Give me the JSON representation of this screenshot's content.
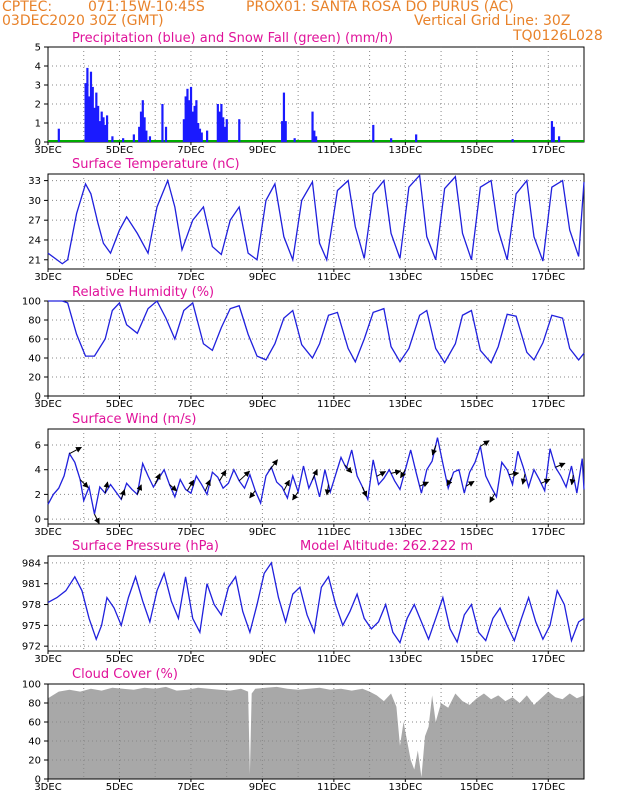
{
  "header": {
    "source": "CPTEC:",
    "coords": "071:15W-10:45S",
    "location": "PROX01: SANTA ROSA DO PURUS (AC)",
    "date": "03DEC2020 30Z (GMT)",
    "grid_note": "Vertical Grid Line: 30Z",
    "run_id": "TQ0126L028",
    "model_altitude": "Model Altitude: 262.222 m"
  },
  "colors": {
    "header_text": "#e8822a",
    "panel_title": "#e0129a",
    "precip": "#1a1aff",
    "snow": "#00aa00",
    "line": "#2020dd",
    "cloud": "#a8a8a8",
    "arrow": "#000000",
    "grid": "#888888"
  },
  "x_axis": {
    "start_day": 3,
    "end_day": 18,
    "labels": [
      "3DEC",
      "5DEC",
      "7DEC",
      "9DEC",
      "11DEC",
      "13DEC",
      "15DEC",
      "17DEC"
    ],
    "label_days": [
      3,
      5,
      7,
      9,
      11,
      13,
      15,
      17
    ],
    "grid_days": [
      4,
      5,
      6,
      7,
      8,
      9,
      10,
      11,
      12,
      13,
      14,
      15,
      16,
      17
    ]
  },
  "chart_data": [
    {
      "id": "precip",
      "type": "bar",
      "title": "Precipitation (blue) and Snow Fall (green) (mm/h)",
      "ylim": [
        0,
        5
      ],
      "yticks": [
        0,
        1,
        2,
        3,
        4,
        5
      ],
      "bars": [
        [
          3.3,
          0.7
        ],
        [
          4.05,
          3.1
        ],
        [
          4.1,
          3.9
        ],
        [
          4.15,
          2.4
        ],
        [
          4.2,
          3.7
        ],
        [
          4.25,
          2.9
        ],
        [
          4.3,
          1.8
        ],
        [
          4.35,
          2.6
        ],
        [
          4.4,
          1.9
        ],
        [
          4.45,
          1.1
        ],
        [
          4.5,
          1.6
        ],
        [
          4.55,
          1.3
        ],
        [
          4.6,
          0.9
        ],
        [
          4.65,
          1.4
        ],
        [
          4.8,
          0.3
        ],
        [
          5.1,
          0.2
        ],
        [
          5.4,
          0.4
        ],
        [
          5.55,
          0.8
        ],
        [
          5.6,
          1.6
        ],
        [
          5.65,
          2.2
        ],
        [
          5.7,
          1.3
        ],
        [
          5.75,
          0.6
        ],
        [
          5.85,
          0.3
        ],
        [
          6.2,
          2.0
        ],
        [
          6.3,
          0.8
        ],
        [
          6.8,
          1.2
        ],
        [
          6.85,
          2.4
        ],
        [
          6.9,
          2.8
        ],
        [
          6.95,
          2.2
        ],
        [
          7.0,
          2.9
        ],
        [
          7.05,
          1.6
        ],
        [
          7.1,
          1.9
        ],
        [
          7.15,
          2.2
        ],
        [
          7.2,
          1.0
        ],
        [
          7.25,
          0.7
        ],
        [
          7.3,
          0.5
        ],
        [
          7.45,
          0.6
        ],
        [
          7.75,
          2.0
        ],
        [
          7.8,
          1.6
        ],
        [
          7.85,
          2.0
        ],
        [
          7.9,
          1.3
        ],
        [
          7.95,
          0.8
        ],
        [
          8.0,
          1.2
        ],
        [
          8.35,
          1.2
        ],
        [
          9.55,
          1.1
        ],
        [
          9.6,
          2.6
        ],
        [
          9.65,
          1.1
        ],
        [
          9.9,
          0.2
        ],
        [
          10.4,
          1.6
        ],
        [
          10.45,
          0.6
        ],
        [
          10.5,
          0.3
        ],
        [
          12.1,
          0.9
        ],
        [
          12.6,
          0.2
        ],
        [
          13.3,
          0.4
        ],
        [
          16.0,
          0.15
        ],
        [
          17.1,
          1.1
        ],
        [
          17.15,
          0.8
        ],
        [
          17.3,
          0.3
        ]
      ]
    },
    {
      "id": "temperature",
      "type": "line",
      "title": "Surface Temperature (nC)",
      "ylim": [
        19.6,
        34.0
      ],
      "yticks": [
        21,
        24,
        27,
        30,
        33
      ],
      "x": [
        3.0,
        3.25,
        3.4,
        3.55,
        3.8,
        4.05,
        4.2,
        4.4,
        4.55,
        4.75,
        5.0,
        5.2,
        5.5,
        5.8,
        6.05,
        6.35,
        6.55,
        6.75,
        7.05,
        7.35,
        7.6,
        7.85,
        8.1,
        8.35,
        8.6,
        8.85,
        9.1,
        9.35,
        9.6,
        9.85,
        10.1,
        10.4,
        10.6,
        10.8,
        11.1,
        11.4,
        11.6,
        11.85,
        12.1,
        12.4,
        12.6,
        12.85,
        13.1,
        13.4,
        13.6,
        13.85,
        14.1,
        14.4,
        14.6,
        14.85,
        15.1,
        15.4,
        15.6,
        15.85,
        16.1,
        16.4,
        16.6,
        16.85,
        17.1,
        17.4,
        17.6,
        17.85,
        18.0
      ],
      "y": [
        22.0,
        21.0,
        20.4,
        21.0,
        28.0,
        32.5,
        31.0,
        26.5,
        23.5,
        22.0,
        25.5,
        27.5,
        25.0,
        22.0,
        29.0,
        33.0,
        29.0,
        22.5,
        27.0,
        29.0,
        23.0,
        21.8,
        27.0,
        29.0,
        22.0,
        21.0,
        30.0,
        32.5,
        24.5,
        21.0,
        30.0,
        32.8,
        23.5,
        21.0,
        31.5,
        33.0,
        26.0,
        21.2,
        31.0,
        33.0,
        25.0,
        21.2,
        32.0,
        33.8,
        24.5,
        21.0,
        31.8,
        33.6,
        25.0,
        21.0,
        32.0,
        33.0,
        25.5,
        21.0,
        31.0,
        33.0,
        24.5,
        20.8,
        32.0,
        33.0,
        25.5,
        21.5,
        32.8
      ]
    },
    {
      "id": "humidity",
      "type": "line",
      "title": "Relative Humidity (%)",
      "ylim": [
        0,
        100
      ],
      "yticks": [
        0,
        20,
        40,
        60,
        80,
        100
      ],
      "x": [
        3.0,
        3.4,
        3.55,
        3.8,
        4.05,
        4.3,
        4.6,
        4.8,
        5.0,
        5.2,
        5.5,
        5.8,
        6.05,
        6.3,
        6.55,
        6.8,
        7.05,
        7.35,
        7.6,
        7.85,
        8.1,
        8.35,
        8.6,
        8.85,
        9.1,
        9.35,
        9.6,
        9.85,
        10.1,
        10.4,
        10.6,
        10.85,
        11.1,
        11.4,
        11.6,
        11.85,
        12.1,
        12.4,
        12.6,
        12.85,
        13.1,
        13.4,
        13.6,
        13.85,
        14.1,
        14.4,
        14.6,
        14.85,
        15.1,
        15.4,
        15.6,
        15.85,
        16.1,
        16.4,
        16.6,
        16.85,
        17.1,
        17.4,
        17.6,
        17.85,
        18.0
      ],
      "y": [
        100,
        100,
        98,
        65,
        42,
        42,
        60,
        90,
        98,
        75,
        66,
        92,
        100,
        82,
        60,
        90,
        98,
        55,
        48,
        72,
        92,
        95,
        65,
        42,
        38,
        55,
        82,
        90,
        54,
        40,
        55,
        85,
        88,
        50,
        36,
        60,
        88,
        92,
        52,
        36,
        50,
        85,
        90,
        50,
        35,
        55,
        85,
        90,
        48,
        35,
        52,
        86,
        84,
        46,
        38,
        56,
        85,
        82,
        50,
        38,
        45
      ]
    },
    {
      "id": "wind",
      "type": "line",
      "title": "Surface Wind (m/s)",
      "ylim": [
        -0.4,
        7.3
      ],
      "yticks": [
        0,
        2,
        4,
        6
      ],
      "x": [
        3.0,
        3.15,
        3.3,
        3.45,
        3.6,
        3.75,
        3.9,
        4.0,
        4.15,
        4.3,
        4.45,
        4.6,
        4.75,
        4.9,
        5.05,
        5.2,
        5.35,
        5.5,
        5.65,
        5.8,
        5.95,
        6.1,
        6.25,
        6.4,
        6.55,
        6.7,
        6.85,
        7.0,
        7.15,
        7.3,
        7.45,
        7.6,
        7.75,
        7.9,
        8.05,
        8.2,
        8.35,
        8.5,
        8.65,
        8.8,
        8.95,
        9.1,
        9.25,
        9.4,
        9.55,
        9.7,
        9.85,
        10.0,
        10.15,
        10.3,
        10.45,
        10.6,
        10.75,
        10.9,
        11.05,
        11.2,
        11.35,
        11.5,
        11.65,
        11.8,
        11.95,
        12.1,
        12.25,
        12.4,
        12.55,
        12.7,
        12.85,
        13.0,
        13.15,
        13.3,
        13.45,
        13.6,
        13.75,
        13.9,
        14.05,
        14.2,
        14.35,
        14.5,
        14.65,
        14.8,
        14.95,
        15.1,
        15.25,
        15.4,
        15.55,
        15.7,
        15.85,
        16.0,
        16.15,
        16.3,
        16.45,
        16.6,
        16.75,
        16.9,
        17.05,
        17.2,
        17.35,
        17.5,
        17.65,
        17.8,
        17.95,
        18.0
      ],
      "y": [
        1.2,
        2.0,
        2.5,
        3.5,
        5.3,
        4.6,
        3.2,
        1.5,
        2.6,
        0.4,
        2.6,
        2.1,
        2.8,
        2.2,
        1.6,
        2.9,
        2.4,
        2.0,
        4.5,
        3.5,
        2.6,
        3.3,
        4.0,
        2.8,
        1.8,
        3.2,
        2.4,
        2.1,
        3.5,
        2.8,
        2.0,
        3.8,
        3.4,
        2.5,
        2.9,
        4.0,
        3.1,
        2.5,
        3.6,
        2.3,
        1.3,
        3.5,
        4.2,
        3.0,
        2.6,
        1.7,
        3.5,
        2.2,
        4.3,
        2.5,
        3.5,
        1.8,
        4.0,
        2.2,
        3.6,
        5.0,
        4.1,
        5.6,
        3.5,
        2.6,
        1.6,
        4.8,
        2.8,
        3.3,
        4.0,
        3.1,
        2.4,
        4.0,
        5.6,
        3.8,
        2.1,
        4.0,
        4.7,
        6.6,
        4.5,
        2.5,
        3.8,
        4.0,
        2.1,
        3.8,
        4.6,
        5.9,
        3.5,
        2.6,
        1.8,
        4.6,
        4.0,
        2.8,
        5.5,
        4.2,
        2.6,
        4.0,
        3.2,
        2.3,
        5.7,
        4.2,
        3.5,
        2.6,
        4.3,
        2.1,
        4.9,
        2.4
      ],
      "wind_barbs": [
        [
          3.6,
          1.5,
          0.8
        ],
        [
          3.9,
          1.0,
          -1.0
        ],
        [
          4.3,
          0.6,
          -1.2
        ],
        [
          4.6,
          0.3,
          1.4
        ],
        [
          5.05,
          0.4,
          1.2
        ],
        [
          5.5,
          0.5,
          1.2
        ],
        [
          6.0,
          0.6,
          1.3
        ],
        [
          6.4,
          0.9,
          -0.8
        ],
        [
          6.9,
          0.8,
          1.3
        ],
        [
          7.4,
          0.6,
          1.4
        ],
        [
          7.8,
          0.8,
          1.3
        ],
        [
          8.35,
          1.3,
          1.2
        ],
        [
          8.8,
          -0.7,
          -0.9
        ],
        [
          9.2,
          1.0,
          1.3
        ],
        [
          9.6,
          0.7,
          1.3
        ],
        [
          10.0,
          -0.7,
          -1.0
        ],
        [
          10.4,
          0.6,
          1.3
        ],
        [
          10.85,
          -0.2,
          -1.3
        ],
        [
          11.3,
          0.9,
          -1.0
        ],
        [
          11.8,
          0.5,
          -1.2
        ],
        [
          12.2,
          1.1,
          0.6
        ],
        [
          12.6,
          1.2,
          0.3
        ],
        [
          13.0,
          -0.6,
          -1.0
        ],
        [
          13.4,
          1.1,
          0.5
        ],
        [
          13.85,
          -0.4,
          -1.2
        ],
        [
          14.3,
          -0.6,
          -1.0
        ],
        [
          14.7,
          1.0,
          0.6
        ],
        [
          15.1,
          1.1,
          0.7
        ],
        [
          15.5,
          -0.6,
          -1.1
        ],
        [
          15.9,
          1.2,
          0.2
        ],
        [
          16.35,
          -0.3,
          -1.3
        ],
        [
          16.8,
          1.1,
          0.5
        ],
        [
          17.2,
          1.2,
          0.5
        ],
        [
          17.7,
          -0.2,
          -1.2
        ]
      ]
    },
    {
      "id": "pressure",
      "type": "line",
      "title": "Surface Pressure (hPa)",
      "ylim": [
        971.3,
        985.0
      ],
      "yticks": [
        972,
        975,
        978,
        981,
        984
      ],
      "x": [
        3.0,
        3.25,
        3.5,
        3.75,
        3.95,
        4.15,
        4.35,
        4.5,
        4.65,
        4.85,
        5.05,
        5.25,
        5.45,
        5.65,
        5.85,
        6.05,
        6.25,
        6.45,
        6.65,
        6.85,
        7.05,
        7.25,
        7.45,
        7.65,
        7.85,
        8.05,
        8.25,
        8.45,
        8.65,
        8.85,
        9.05,
        9.25,
        9.45,
        9.65,
        9.85,
        10.05,
        10.25,
        10.45,
        10.65,
        10.85,
        11.05,
        11.25,
        11.45,
        11.65,
        11.85,
        12.05,
        12.25,
        12.45,
        12.65,
        12.85,
        13.05,
        13.25,
        13.45,
        13.65,
        13.85,
        14.05,
        14.25,
        14.45,
        14.65,
        14.85,
        15.05,
        15.25,
        15.45,
        15.65,
        15.85,
        16.05,
        16.25,
        16.45,
        16.65,
        16.85,
        17.05,
        17.25,
        17.45,
        17.65,
        17.85,
        18.0
      ],
      "y": [
        978.3,
        979.0,
        980.0,
        982.0,
        980.0,
        976.0,
        973.0,
        975.0,
        979.0,
        977.5,
        975.0,
        979.0,
        982.0,
        978.5,
        975.5,
        980.0,
        982.5,
        978.5,
        976.0,
        982.0,
        976.0,
        974.0,
        981.0,
        978.0,
        976.5,
        980.5,
        982.0,
        977.0,
        974.0,
        978.0,
        982.5,
        984.0,
        979.0,
        975.5,
        979.5,
        980.5,
        976.5,
        974.0,
        980.5,
        982.0,
        978.0,
        975.0,
        977.0,
        979.5,
        976.0,
        974.5,
        975.5,
        978.0,
        974.0,
        972.5,
        976.0,
        978.0,
        975.5,
        973.0,
        976.0,
        979.0,
        974.5,
        972.6,
        976.5,
        978.0,
        974.0,
        972.8,
        976.0,
        977.5,
        975.0,
        972.8,
        976.0,
        979.0,
        975.5,
        973.0,
        975.0,
        980.0,
        978.0,
        972.8,
        975.5,
        976.0
      ]
    },
    {
      "id": "cloud",
      "type": "area",
      "title": "Cloud Cover (%)",
      "ylim": [
        0,
        100
      ],
      "yticks": [
        0,
        20,
        40,
        60,
        80,
        100
      ],
      "x": [
        3.0,
        3.3,
        3.6,
        3.9,
        4.2,
        4.5,
        4.8,
        5.1,
        5.4,
        5.7,
        6.0,
        6.3,
        6.6,
        6.9,
        7.2,
        7.5,
        7.8,
        8.1,
        8.4,
        8.6,
        8.65,
        8.7,
        8.8,
        9.1,
        9.4,
        9.7,
        10.0,
        10.3,
        10.6,
        10.9,
        11.2,
        11.5,
        11.8,
        12.0,
        12.2,
        12.4,
        12.6,
        12.75,
        12.85,
        12.95,
        13.05,
        13.15,
        13.25,
        13.35,
        13.45,
        13.55,
        13.65,
        13.75,
        13.85,
        14.0,
        14.2,
        14.4,
        14.6,
        14.8,
        15.0,
        15.2,
        15.4,
        15.6,
        15.8,
        16.0,
        16.2,
        16.4,
        16.6,
        16.8,
        17.0,
        17.2,
        17.4,
        17.6,
        17.8,
        18.0
      ],
      "y": [
        85,
        92,
        94,
        92,
        95,
        93,
        96,
        95,
        94,
        96,
        95,
        97,
        93,
        94,
        96,
        95,
        94,
        93,
        95,
        92,
        5,
        90,
        95,
        96,
        97,
        95,
        94,
        95,
        96,
        94,
        95,
        93,
        95,
        92,
        88,
        82,
        90,
        76,
        35,
        60,
        40,
        20,
        10,
        30,
        2,
        45,
        55,
        88,
        60,
        80,
        75,
        90,
        82,
        78,
        85,
        90,
        84,
        88,
        82,
        86,
        80,
        88,
        78,
        85,
        92,
        86,
        84,
        90,
        85,
        88
      ]
    }
  ]
}
